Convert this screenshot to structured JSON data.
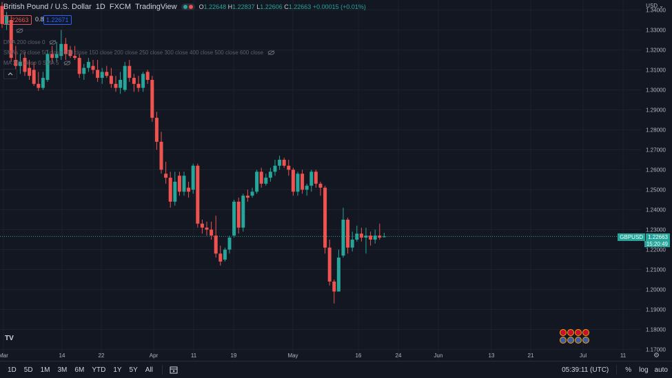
{
  "header": {
    "symbol_name": "British Pound / U.S. Dollar",
    "interval": "1D",
    "exchange": "FXCM",
    "platform": "TradingView",
    "ohlc": {
      "o_label": "O",
      "o_value": "1.22648",
      "h_label": "H",
      "h_value": "1.22837",
      "l_label": "L",
      "l_value": "1.22606",
      "c_label": "C",
      "c_value": "1.22663",
      "change": "+0.00015 (+0.01%)"
    },
    "sell_price": "1.22663",
    "spread": "0.8",
    "buy_price": "1.22671"
  },
  "indicators": [
    {
      "label": "DMA 200 close 0"
    },
    {
      "label": "SMAs 20 close 50 close 100 close 150 close 200 close 250 close 300 close 400 close 500 close 600 close"
    },
    {
      "label": "MA 200 close 0 SMA 5"
    }
  ],
  "currency_label": "USD",
  "price_axis": {
    "min": 1.165,
    "max": 1.345,
    "ticks": [
      "1.34000",
      "1.33000",
      "1.32000",
      "1.31000",
      "1.30000",
      "1.29000",
      "1.28000",
      "1.27000",
      "1.26000",
      "1.25000",
      "1.24000",
      "1.23000",
      "1.22000",
      "1.21000",
      "1.20000",
      "1.19000",
      "1.18000",
      "1.17000"
    ]
  },
  "time_axis": {
    "labels": [
      "Mar",
      "14",
      "22",
      "Apr",
      "11",
      "19",
      "May",
      "16",
      "24",
      "Jun",
      "13",
      "21",
      "Jul",
      "11"
    ]
  },
  "last_price_tag": {
    "symbol": "GBPUSD",
    "price": "1.22663",
    "countdown": "15:20:49"
  },
  "bottom_bar": {
    "ranges": [
      "1D",
      "5D",
      "1M",
      "3M",
      "6M",
      "YTD",
      "1Y",
      "5Y",
      "All"
    ],
    "clock": "05:39:11 (UTC)",
    "percent": "%",
    "log": "log",
    "auto": "auto"
  },
  "colors": {
    "bg": "#131722",
    "up": "#26a69a",
    "down": "#ef5350",
    "grid": "#1e222d",
    "text": "#d1d4dc"
  },
  "chart_data": {
    "type": "candlestick",
    "symbol": "GBPUSD",
    "interval": "1D",
    "ylim": [
      1.165,
      1.345
    ],
    "candles": [
      {
        "o": 1.342,
        "h": 1.344,
        "l": 1.331,
        "c": 1.333
      },
      {
        "o": 1.333,
        "h": 1.339,
        "l": 1.33,
        "c": 1.337
      },
      {
        "o": 1.335,
        "h": 1.337,
        "l": 1.314,
        "c": 1.316
      },
      {
        "o": 1.315,
        "h": 1.322,
        "l": 1.308,
        "c": 1.312
      },
      {
        "o": 1.312,
        "h": 1.318,
        "l": 1.308,
        "c": 1.314
      },
      {
        "o": 1.316,
        "h": 1.319,
        "l": 1.307,
        "c": 1.309
      },
      {
        "o": 1.311,
        "h": 1.315,
        "l": 1.305,
        "c": 1.307
      },
      {
        "o": 1.31,
        "h": 1.314,
        "l": 1.302,
        "c": 1.303
      },
      {
        "o": 1.303,
        "h": 1.309,
        "l": 1.2995,
        "c": 1.301
      },
      {
        "o": 1.301,
        "h": 1.309,
        "l": 1.3,
        "c": 1.306
      },
      {
        "o": 1.305,
        "h": 1.32,
        "l": 1.304,
        "c": 1.318
      },
      {
        "o": 1.318,
        "h": 1.322,
        "l": 1.313,
        "c": 1.316
      },
      {
        "o": 1.316,
        "h": 1.324,
        "l": 1.314,
        "c": 1.318
      },
      {
        "o": 1.317,
        "h": 1.33,
        "l": 1.315,
        "c": 1.323
      },
      {
        "o": 1.323,
        "h": 1.326,
        "l": 1.315,
        "c": 1.318
      },
      {
        "o": 1.32,
        "h": 1.322,
        "l": 1.316,
        "c": 1.317
      },
      {
        "o": 1.317,
        "h": 1.322,
        "l": 1.315,
        "c": 1.316
      },
      {
        "o": 1.316,
        "h": 1.318,
        "l": 1.306,
        "c": 1.308
      },
      {
        "o": 1.308,
        "h": 1.313,
        "l": 1.305,
        "c": 1.311
      },
      {
        "o": 1.311,
        "h": 1.316,
        "l": 1.309,
        "c": 1.314
      },
      {
        "o": 1.312,
        "h": 1.315,
        "l": 1.308,
        "c": 1.31
      },
      {
        "o": 1.31,
        "h": 1.315,
        "l": 1.304,
        "c": 1.306
      },
      {
        "o": 1.306,
        "h": 1.311,
        "l": 1.303,
        "c": 1.309
      },
      {
        "o": 1.309,
        "h": 1.312,
        "l": 1.306,
        "c": 1.307
      },
      {
        "o": 1.307,
        "h": 1.311,
        "l": 1.301,
        "c": 1.303
      },
      {
        "o": 1.303,
        "h": 1.307,
        "l": 1.299,
        "c": 1.301
      },
      {
        "o": 1.301,
        "h": 1.309,
        "l": 1.298,
        "c": 1.305
      },
      {
        "o": 1.3,
        "h": 1.314,
        "l": 1.299,
        "c": 1.312
      },
      {
        "o": 1.312,
        "h": 1.315,
        "l": 1.304,
        "c": 1.306
      },
      {
        "o": 1.306,
        "h": 1.308,
        "l": 1.299,
        "c": 1.303
      },
      {
        "o": 1.303,
        "h": 1.307,
        "l": 1.299,
        "c": 1.301
      },
      {
        "o": 1.301,
        "h": 1.309,
        "l": 1.299,
        "c": 1.308
      },
      {
        "o": 1.309,
        "h": 1.31,
        "l": 1.303,
        "c": 1.305
      },
      {
        "o": 1.305,
        "h": 1.307,
        "l": 1.284,
        "c": 1.286
      },
      {
        "o": 1.286,
        "h": 1.289,
        "l": 1.27,
        "c": 1.274
      },
      {
        "o": 1.274,
        "h": 1.279,
        "l": 1.258,
        "c": 1.26
      },
      {
        "o": 1.258,
        "h": 1.264,
        "l": 1.253,
        "c": 1.256
      },
      {
        "o": 1.256,
        "h": 1.259,
        "l": 1.241,
        "c": 1.244
      },
      {
        "o": 1.244,
        "h": 1.259,
        "l": 1.242,
        "c": 1.254
      },
      {
        "o": 1.257,
        "h": 1.259,
        "l": 1.247,
        "c": 1.249
      },
      {
        "o": 1.249,
        "h": 1.259,
        "l": 1.247,
        "c": 1.257
      },
      {
        "o": 1.251,
        "h": 1.254,
        "l": 1.246,
        "c": 1.249
      },
      {
        "o": 1.25,
        "h": 1.263,
        "l": 1.248,
        "c": 1.262
      },
      {
        "o": 1.262,
        "h": 1.263,
        "l": 1.231,
        "c": 1.233
      },
      {
        "o": 1.233,
        "h": 1.235,
        "l": 1.228,
        "c": 1.231
      },
      {
        "o": 1.231,
        "h": 1.234,
        "l": 1.227,
        "c": 1.23
      },
      {
        "o": 1.23,
        "h": 1.234,
        "l": 1.225,
        "c": 1.227
      },
      {
        "o": 1.227,
        "h": 1.237,
        "l": 1.216,
        "c": 1.218
      },
      {
        "o": 1.218,
        "h": 1.222,
        "l": 1.212,
        "c": 1.214
      },
      {
        "o": 1.215,
        "h": 1.221,
        "l": 1.214,
        "c": 1.22
      },
      {
        "o": 1.22,
        "h": 1.227,
        "l": 1.218,
        "c": 1.226
      },
      {
        "o": 1.227,
        "h": 1.245,
        "l": 1.226,
        "c": 1.244
      },
      {
        "o": 1.244,
        "h": 1.246,
        "l": 1.228,
        "c": 1.231
      },
      {
        "o": 1.231,
        "h": 1.248,
        "l": 1.229,
        "c": 1.247
      },
      {
        "o": 1.247,
        "h": 1.25,
        "l": 1.244,
        "c": 1.246
      },
      {
        "o": 1.247,
        "h": 1.251,
        "l": 1.246,
        "c": 1.249
      },
      {
        "o": 1.249,
        "h": 1.26,
        "l": 1.248,
        "c": 1.259
      },
      {
        "o": 1.259,
        "h": 1.261,
        "l": 1.251,
        "c": 1.253
      },
      {
        "o": 1.253,
        "h": 1.258,
        "l": 1.252,
        "c": 1.256
      },
      {
        "o": 1.256,
        "h": 1.261,
        "l": 1.254,
        "c": 1.259
      },
      {
        "o": 1.259,
        "h": 1.265,
        "l": 1.257,
        "c": 1.262
      },
      {
        "o": 1.262,
        "h": 1.267,
        "l": 1.26,
        "c": 1.265
      },
      {
        "o": 1.265,
        "h": 1.266,
        "l": 1.261,
        "c": 1.262
      },
      {
        "o": 1.262,
        "h": 1.265,
        "l": 1.257,
        "c": 1.26
      },
      {
        "o": 1.26,
        "h": 1.261,
        "l": 1.247,
        "c": 1.249
      },
      {
        "o": 1.249,
        "h": 1.259,
        "l": 1.247,
        "c": 1.258
      },
      {
        "o": 1.258,
        "h": 1.26,
        "l": 1.248,
        "c": 1.25
      },
      {
        "o": 1.25,
        "h": 1.253,
        "l": 1.247,
        "c": 1.252
      },
      {
        "o": 1.252,
        "h": 1.26,
        "l": 1.249,
        "c": 1.259
      },
      {
        "o": 1.259,
        "h": 1.26,
        "l": 1.251,
        "c": 1.253
      },
      {
        "o": 1.253,
        "h": 1.254,
        "l": 1.247,
        "c": 1.251
      },
      {
        "o": 1.251,
        "h": 1.252,
        "l": 1.218,
        "c": 1.221
      },
      {
        "o": 1.221,
        "h": 1.225,
        "l": 1.202,
        "c": 1.204
      },
      {
        "o": 1.204,
        "h": 1.205,
        "l": 1.193,
        "c": 1.199
      },
      {
        "o": 1.199,
        "h": 1.22,
        "l": 1.199,
        "c": 1.216
      },
      {
        "o": 1.217,
        "h": 1.241,
        "l": 1.216,
        "c": 1.235
      },
      {
        "o": 1.235,
        "h": 1.236,
        "l": 1.218,
        "c": 1.221
      },
      {
        "o": 1.221,
        "h": 1.229,
        "l": 1.219,
        "c": 1.225
      },
      {
        "o": 1.225,
        "h": 1.232,
        "l": 1.224,
        "c": 1.228
      },
      {
        "o": 1.228,
        "h": 1.231,
        "l": 1.224,
        "c": 1.226
      },
      {
        "o": 1.226,
        "h": 1.231,
        "l": 1.218,
        "c": 1.227
      },
      {
        "o": 1.227,
        "h": 1.229,
        "l": 1.222,
        "c": 1.225
      },
      {
        "o": 1.225,
        "h": 1.23,
        "l": 1.223,
        "c": 1.227
      },
      {
        "o": 1.227,
        "h": 1.233,
        "l": 1.225,
        "c": 1.226
      },
      {
        "o": 1.2265,
        "h": 1.2284,
        "l": 1.2261,
        "c": 1.2266
      }
    ]
  }
}
